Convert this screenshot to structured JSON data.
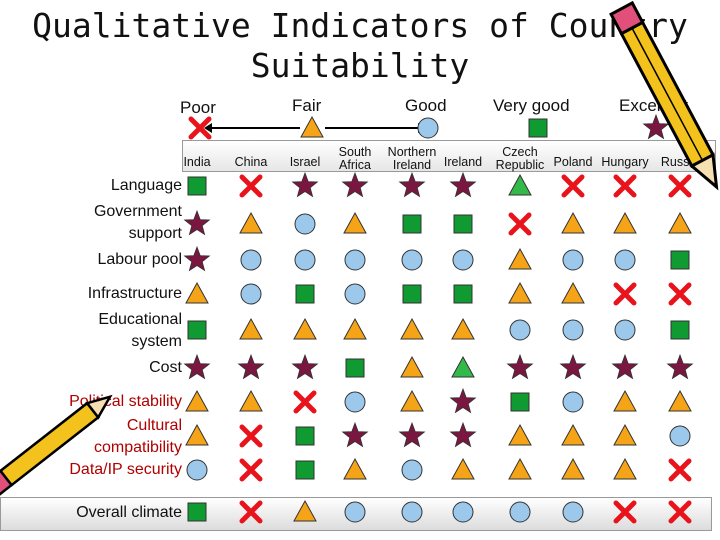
{
  "title": "Qualitative Indicators of Country Suitability",
  "scale": [
    {
      "label": "Poor",
      "symbol": "cross"
    },
    {
      "label": "Fair",
      "symbol": "triangle"
    },
    {
      "label": "Good",
      "symbol": "circle"
    },
    {
      "label": "Very good",
      "symbol": "square"
    },
    {
      "label": "Excellent",
      "symbol": "star"
    }
  ],
  "countries": [
    {
      "lines": [
        "India"
      ]
    },
    {
      "lines": [
        "China"
      ]
    },
    {
      "lines": [
        "Israel"
      ]
    },
    {
      "lines": [
        "South",
        "Africa"
      ]
    },
    {
      "lines": [
        "Northern",
        "Ireland"
      ]
    },
    {
      "lines": [
        "Ireland"
      ]
    },
    {
      "lines": [
        "Czech",
        "Republic"
      ]
    },
    {
      "lines": [
        "Poland"
      ]
    },
    {
      "lines": [
        "Hungary"
      ]
    },
    {
      "lines": [
        "Russia"
      ]
    }
  ],
  "indicators": [
    {
      "label": [
        "Language"
      ],
      "color": "black"
    },
    {
      "label": [
        "Government",
        "support"
      ],
      "color": "black"
    },
    {
      "label": [
        "Labour pool"
      ],
      "color": "black"
    },
    {
      "label": [
        "Infrastructure"
      ],
      "color": "black"
    },
    {
      "label": [
        "Educational",
        "system"
      ],
      "color": "black"
    },
    {
      "label": [
        "Cost"
      ],
      "color": "black"
    },
    {
      "label": [
        "Political stability"
      ],
      "color": "red"
    },
    {
      "label": [
        "Cultural",
        "compatibility"
      ],
      "color": "red"
    },
    {
      "label": [
        "Data/IP security"
      ],
      "color": "red"
    },
    {
      "label": [
        "Overall climate"
      ],
      "color": "black"
    }
  ],
  "ratings": [
    [
      "square",
      "cross",
      "star",
      "star",
      "star",
      "star",
      "triangle-green",
      "cross",
      "cross",
      "cross"
    ],
    [
      "star",
      "triangle",
      "circle",
      "triangle",
      "square",
      "square",
      "cross",
      "triangle",
      "triangle",
      "triangle"
    ],
    [
      "star",
      "circle",
      "circle",
      "circle",
      "circle",
      "circle",
      "triangle",
      "circle",
      "circle",
      "square"
    ],
    [
      "triangle",
      "circle",
      "square",
      "circle",
      "square",
      "square",
      "triangle",
      "triangle",
      "cross",
      "cross"
    ],
    [
      "square",
      "triangle",
      "triangle",
      "triangle",
      "triangle",
      "triangle",
      "circle",
      "circle",
      "circle",
      "square"
    ],
    [
      "star",
      "star",
      "star",
      "square",
      "triangle",
      "triangle-green",
      "star",
      "star",
      "star",
      "star"
    ],
    [
      "triangle",
      "triangle",
      "cross",
      "circle",
      "triangle",
      "star",
      "square",
      "circle",
      "triangle",
      "triangle"
    ],
    [
      "triangle",
      "cross",
      "square",
      "star",
      "star",
      "star",
      "triangle",
      "triangle",
      "triangle",
      "circle"
    ],
    [
      "circle",
      "cross",
      "square",
      "triangle",
      "circle",
      "triangle",
      "triangle",
      "triangle",
      "triangle",
      "cross"
    ],
    [
      "square",
      "cross",
      "triangle",
      "circle",
      "circle",
      "circle",
      "circle",
      "circle",
      "cross",
      "cross"
    ]
  ],
  "colors": {
    "cross": "#e8131b",
    "triangle": "#f5a317",
    "circle": "#9cc8ec",
    "square": "#0f9a32",
    "star": "#7a1740",
    "triangle-green": "#33b84a",
    "red_label": "#b00000"
  },
  "decorations": [
    "pencil-icon-top-right",
    "pencil-icon-bottom-left"
  ]
}
